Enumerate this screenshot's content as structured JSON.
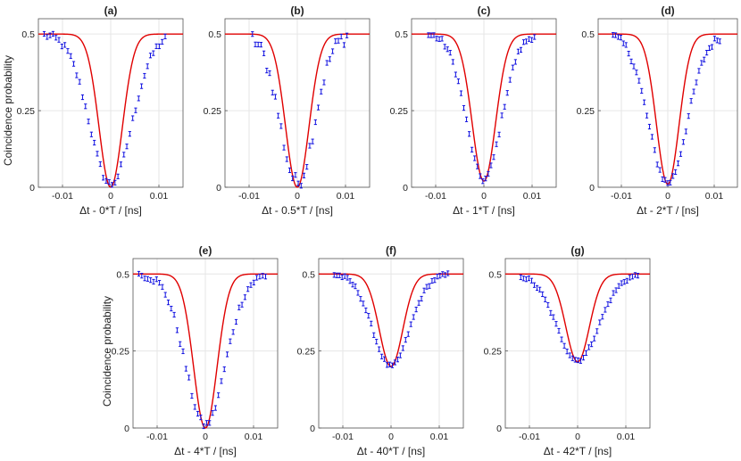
{
  "figure": {
    "ylabel": "Coincidence probability"
  },
  "chart_data": [
    {
      "type": "scatter",
      "title": "(a)",
      "xlabel": "Δt - 0*T / [ns]",
      "ylabel": "Coincidence probability",
      "xlim": [
        -0.015,
        0.015
      ],
      "ylim": [
        0,
        0.55
      ],
      "xticks": [
        -0.01,
        0,
        0.01
      ],
      "xtick_labels": [
        "-0.01",
        "0",
        "0.01"
      ],
      "yticks": [
        0,
        0.25,
        0.5
      ],
      "ytick_labels": [
        "0",
        "0.25",
        "0.5"
      ],
      "fit": {
        "name": "fit",
        "baseline": 0.5,
        "min": 0.0,
        "center": 0.0,
        "width": 0.0036
      },
      "points": {
        "center": 0.0,
        "min": 0.01,
        "width": 0.0055,
        "xstart": -0.0138,
        "xend": 0.0113,
        "n": 42,
        "noise": 0.012
      }
    },
    {
      "type": "scatter",
      "title": "(b)",
      "xlabel": "Δt - 0.5*T / [ns]",
      "ylabel": "",
      "xlim": [
        -0.015,
        0.015
      ],
      "ylim": [
        0,
        0.55
      ],
      "xticks": [
        -0.01,
        0,
        0.01
      ],
      "xtick_labels": [
        "-0.01",
        "0",
        "0.01"
      ],
      "yticks": [
        0,
        0.25,
        0.5
      ],
      "ytick_labels": [
        "0",
        "0.25",
        "0.5"
      ],
      "fit": {
        "name": "fit",
        "baseline": 0.5,
        "min": 0.0,
        "center": 0.0,
        "width": 0.0036
      },
      "points": {
        "center": 0.0,
        "min": 0.015,
        "width": 0.0045,
        "xstart": -0.0093,
        "xend": 0.0103,
        "n": 34,
        "noise": 0.025
      }
    },
    {
      "type": "scatter",
      "title": "(c)",
      "xlabel": "Δt - 1*T / [ns]",
      "ylabel": "",
      "xlim": [
        -0.015,
        0.015
      ],
      "ylim": [
        0,
        0.55
      ],
      "xticks": [
        -0.01,
        0,
        0.01
      ],
      "xtick_labels": [
        "-0.01",
        "0",
        "0.01"
      ],
      "yticks": [
        0,
        0.25,
        0.5
      ],
      "ytick_labels": [
        "0",
        "0.25",
        "0.5"
      ],
      "fit": {
        "name": "fit",
        "baseline": 0.5,
        "min": 0.02,
        "center": 0.0,
        "width": 0.0036
      },
      "points": {
        "center": 0.0,
        "min": 0.025,
        "width": 0.0045,
        "xstart": -0.0115,
        "xend": 0.0105,
        "n": 40,
        "noise": 0.01
      }
    },
    {
      "type": "scatter",
      "title": "(d)",
      "xlabel": "Δt - 2*T / [ns]",
      "ylabel": "",
      "xlim": [
        -0.015,
        0.015
      ],
      "ylim": [
        0,
        0.55
      ],
      "xticks": [
        -0.01,
        0,
        0.01
      ],
      "xtick_labels": [
        "-0.01",
        "0",
        "0.01"
      ],
      "yticks": [
        0,
        0.25,
        0.5
      ],
      "ytick_labels": [
        "0",
        "0.25",
        "0.5"
      ],
      "fit": {
        "name": "fit",
        "baseline": 0.5,
        "min": 0.01,
        "center": 0.0,
        "width": 0.0036
      },
      "points": {
        "center": 0.0,
        "min": 0.015,
        "width": 0.0052,
        "xstart": -0.0118,
        "xend": 0.0112,
        "n": 42,
        "noise": 0.012
      }
    },
    {
      "type": "scatter",
      "title": "(e)",
      "xlabel": "Δt - 4*T / [ns]",
      "ylabel": "Coincidence probability",
      "xlim": [
        -0.015,
        0.015
      ],
      "ylim": [
        0,
        0.55
      ],
      "xticks": [
        -0.01,
        0,
        0.01
      ],
      "xtick_labels": [
        "-0.01",
        "0",
        "0.01"
      ],
      "yticks": [
        0,
        0.25,
        0.5
      ],
      "ytick_labels": [
        "0",
        "0.25",
        "0.5"
      ],
      "fit": {
        "name": "fit",
        "baseline": 0.5,
        "min": 0.0,
        "center": 0.0,
        "width": 0.0036
      },
      "points": {
        "center": 0.0,
        "min": 0.01,
        "width": 0.0052,
        "xstart": -0.0138,
        "xend": 0.0125,
        "n": 44,
        "noise": 0.012
      }
    },
    {
      "type": "scatter",
      "title": "(f)",
      "xlabel": "Δt - 40*T / [ns]",
      "ylabel": "",
      "xlim": [
        -0.015,
        0.015
      ],
      "ylim": [
        0,
        0.55
      ],
      "xticks": [
        -0.01,
        0,
        0.01
      ],
      "xtick_labels": [
        "-0.01",
        "0",
        "0.01"
      ],
      "yticks": [
        0,
        0.25,
        0.5
      ],
      "ytick_labels": [
        "0",
        "0.25",
        "0.5"
      ],
      "fit": {
        "name": "fit",
        "baseline": 0.5,
        "min": 0.2,
        "center": 0.0,
        "width": 0.0036
      },
      "points": {
        "center": 0.0,
        "min": 0.2,
        "width": 0.0048,
        "xstart": -0.0118,
        "xend": 0.0118,
        "n": 44,
        "noise": 0.006
      }
    },
    {
      "type": "scatter",
      "title": "(g)",
      "xlabel": "Δt - 42*T / [ns]",
      "ylabel": "",
      "xlim": [
        -0.015,
        0.015
      ],
      "ylim": [
        0,
        0.55
      ],
      "xticks": [
        -0.01,
        0,
        0.01
      ],
      "xtick_labels": [
        "-0.01",
        "0",
        "0.01"
      ],
      "yticks": [
        0,
        0.25,
        0.5
      ],
      "ytick_labels": [
        "0",
        "0.25",
        "0.5"
      ],
      "fit": {
        "name": "fit",
        "baseline": 0.5,
        "min": 0.215,
        "center": 0.0,
        "width": 0.0036
      },
      "points": {
        "center": 0.0,
        "min": 0.22,
        "width": 0.0055,
        "xstart": -0.0118,
        "xend": 0.0125,
        "n": 44,
        "noise": 0.006
      }
    }
  ],
  "colors": {
    "fit": "#e00000",
    "points": "#1010e0",
    "grid": "#e6e6e6",
    "axis": "#555555"
  }
}
